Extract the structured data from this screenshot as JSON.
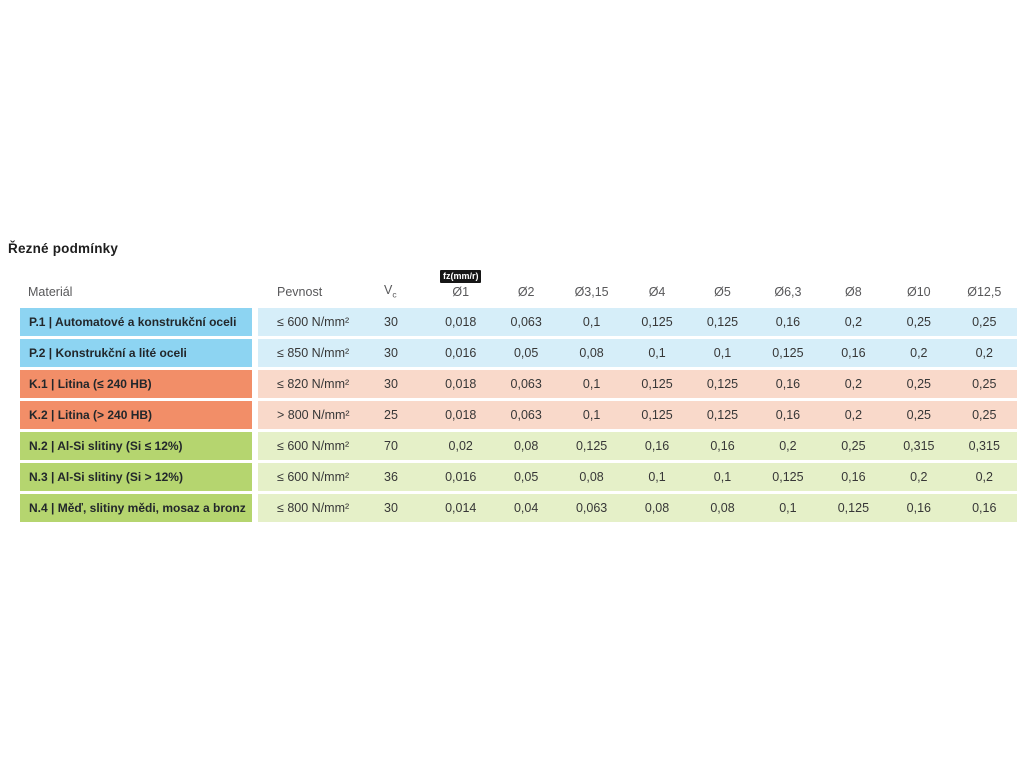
{
  "page": {
    "title": "Řezné podmínky"
  },
  "fz_badge": "fz(mm/r)",
  "header_vc": {
    "main": "V",
    "sub": "c"
  },
  "colors": {
    "P": {
      "label_bg": "#8DD4F2",
      "data_bg": "#D6EEF9"
    },
    "K": {
      "label_bg": "#F28E68",
      "data_bg": "#F9D9CA"
    },
    "N": {
      "label_bg": "#B5D56F",
      "data_bg": "#E5F0C8"
    },
    "badge_bg": "#161616",
    "badge_text": "#FFFFFF",
    "header_text": "#58585A",
    "body_text": "#373737"
  },
  "chart_data": {
    "type": "table",
    "title": "Řezné podmínky",
    "columns": [
      "Materiál",
      "Pevnost",
      "Vc",
      "Ø1",
      "Ø2",
      "Ø3,15",
      "Ø4",
      "Ø5",
      "Ø6,3",
      "Ø8",
      "Ø10",
      "Ø12,5"
    ],
    "unit_note": "fz(mm/r)",
    "rows": [
      {
        "group": "P",
        "cells": [
          "P.1 | Automatové a konstrukční oceli",
          "≤ 600 N/mm²",
          "30",
          "0,018",
          "0,063",
          "0,1",
          "0,125",
          "0,125",
          "0,16",
          "0,2",
          "0,25",
          "0,25"
        ]
      },
      {
        "group": "P",
        "cells": [
          "P.2 | Konstrukční a lité oceli",
          "≤ 850 N/mm²",
          "30",
          "0,016",
          "0,05",
          "0,08",
          "0,1",
          "0,1",
          "0,125",
          "0,16",
          "0,2",
          "0,2"
        ]
      },
      {
        "group": "K",
        "cells": [
          "K.1 | Litina (≤ 240 HB)",
          "≤ 820 N/mm²",
          "30",
          "0,018",
          "0,063",
          "0,1",
          "0,125",
          "0,125",
          "0,16",
          "0,2",
          "0,25",
          "0,25"
        ]
      },
      {
        "group": "K",
        "cells": [
          "K.2 | Litina (> 240 HB)",
          "> 800 N/mm²",
          "25",
          "0,018",
          "0,063",
          "0,1",
          "0,125",
          "0,125",
          "0,16",
          "0,2",
          "0,25",
          "0,25"
        ]
      },
      {
        "group": "N",
        "cells": [
          "N.2 | Al-Si slitiny (Si ≤ 12%)",
          "≤ 600 N/mm²",
          "70",
          "0,02",
          "0,08",
          "0,125",
          "0,16",
          "0,16",
          "0,2",
          "0,25",
          "0,315",
          "0,315"
        ]
      },
      {
        "group": "N",
        "cells": [
          "N.3 | Al-Si slitiny (Si > 12%)",
          "≤ 600 N/mm²",
          "36",
          "0,016",
          "0,05",
          "0,08",
          "0,1",
          "0,1",
          "0,125",
          "0,16",
          "0,2",
          "0,2"
        ]
      },
      {
        "group": "N",
        "cells": [
          "N.4 | Měď, slitiny mědi, mosaz a bronz",
          "≤ 800 N/mm²",
          "30",
          "0,014",
          "0,04",
          "0,063",
          "0,08",
          "0,08",
          "0,1",
          "0,125",
          "0,16",
          "0,16"
        ]
      }
    ]
  }
}
